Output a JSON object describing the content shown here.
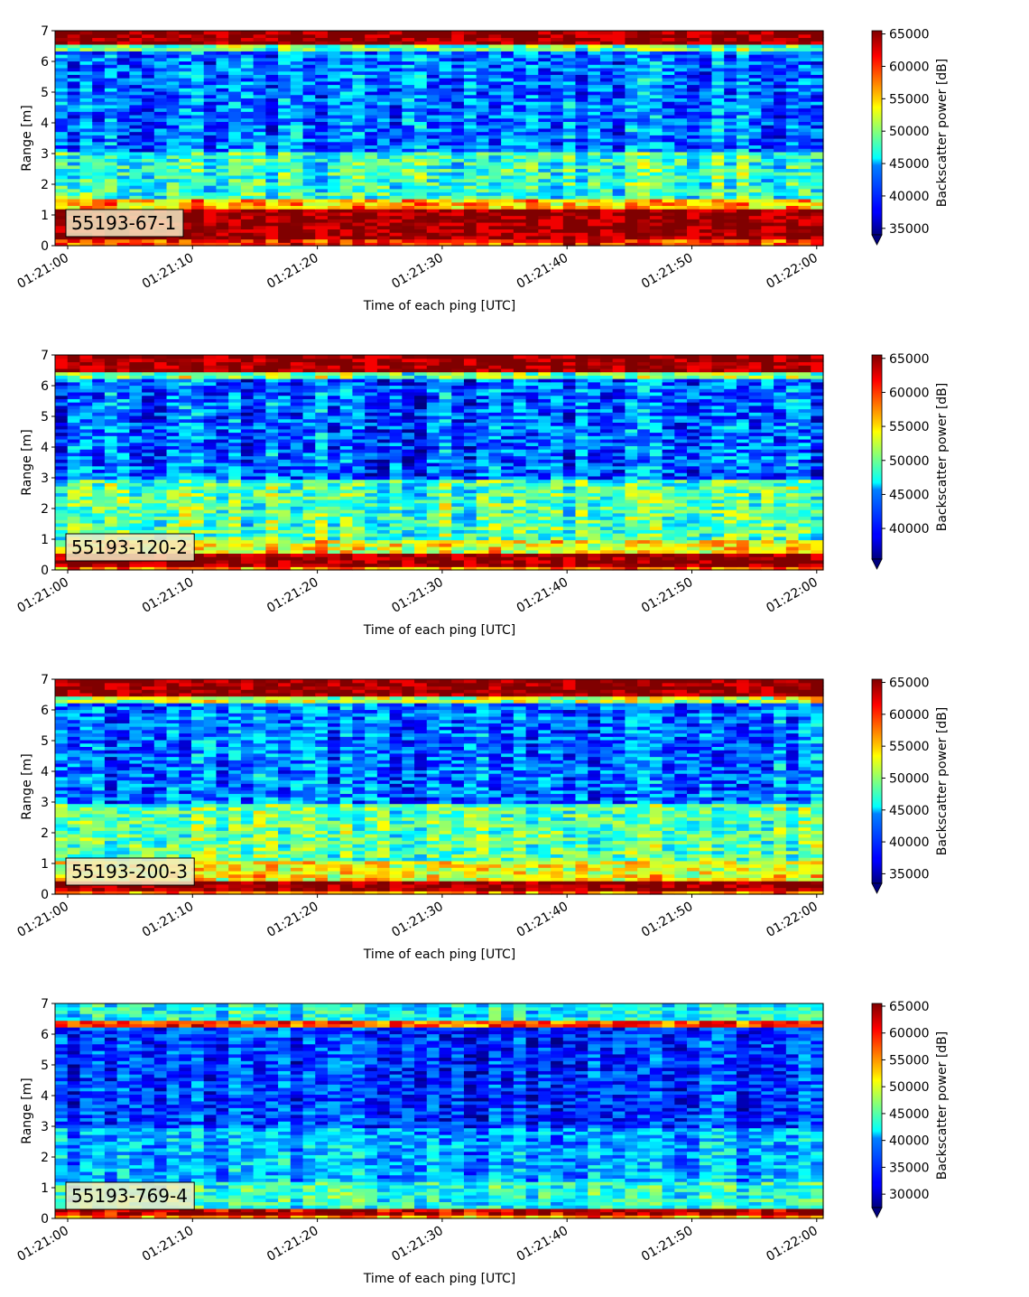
{
  "chart_data": [
    {
      "type": "heatmap",
      "panel_label": "55193-67-1",
      "xlabel": "Time of each ping [UTC]",
      "ylabel": "Range [m]",
      "colorbar_label": "Backscatter power [dB]",
      "colormap": "jet",
      "x_ticks": [
        "01:21:00",
        "01:21:10",
        "01:21:20",
        "01:21:30",
        "01:21:40",
        "01:21:50",
        "01:22:00"
      ],
      "y_ticks": [
        0,
        1,
        2,
        3,
        4,
        5,
        6,
        7
      ],
      "ylim": [
        0,
        7
      ],
      "clim": [
        34000,
        65500
      ],
      "colorbar_ticks": [
        35000,
        40000,
        45000,
        50000,
        55000,
        60000,
        65000
      ],
      "colorbar_extend": "min",
      "features": [
        {
          "from_m": 0.0,
          "to_m": 0.25,
          "level": 60000
        },
        {
          "from_m": 0.25,
          "to_m": 1.2,
          "level": 65000
        },
        {
          "from_m": 1.2,
          "to_m": 1.5,
          "level": 56000
        },
        {
          "from_m": 1.5,
          "to_m": 3.1,
          "level": 47500
        },
        {
          "from_m": 3.1,
          "to_m": 6.3,
          "level": 41500
        },
        {
          "from_m": 6.3,
          "to_m": 6.6,
          "level": 49000
        },
        {
          "from_m": 6.6,
          "to_m": 7.0,
          "level": 65000
        }
      ]
    },
    {
      "type": "heatmap",
      "panel_label": "55193-120-2",
      "xlabel": "Time of each ping [UTC]",
      "ylabel": "Range [m]",
      "colorbar_label": "Backscatter power [dB]",
      "colormap": "jet",
      "x_ticks": [
        "01:21:00",
        "01:21:10",
        "01:21:20",
        "01:21:30",
        "01:21:40",
        "01:21:50",
        "01:22:00"
      ],
      "y_ticks": [
        0,
        1,
        2,
        3,
        4,
        5,
        6,
        7
      ],
      "ylim": [
        0,
        7
      ],
      "clim": [
        35500,
        65500
      ],
      "colorbar_ticks": [
        40000,
        45000,
        50000,
        55000,
        60000,
        65000
      ],
      "colorbar_extend": "min",
      "features": [
        {
          "from_m": 0.0,
          "to_m": 0.15,
          "level": 58000
        },
        {
          "from_m": 0.15,
          "to_m": 0.6,
          "level": 65000
        },
        {
          "from_m": 0.6,
          "to_m": 1.0,
          "level": 54000
        },
        {
          "from_m": 1.0,
          "to_m": 3.0,
          "level": 49000
        },
        {
          "from_m": 3.0,
          "to_m": 6.2,
          "level": 42000
        },
        {
          "from_m": 6.2,
          "to_m": 6.5,
          "level": 50000
        },
        {
          "from_m": 6.5,
          "to_m": 7.0,
          "level": 65000
        }
      ]
    },
    {
      "type": "heatmap",
      "panel_label": "55193-200-3",
      "xlabel": "Time of each ping [UTC]",
      "ylabel": "Range [m]",
      "colorbar_label": "Backscatter power [dB]",
      "colormap": "jet",
      "x_ticks": [
        "01:21:00",
        "01:21:10",
        "01:21:20",
        "01:21:30",
        "01:21:40",
        "01:21:50",
        "01:22:00"
      ],
      "y_ticks": [
        0,
        1,
        2,
        3,
        4,
        5,
        6,
        7
      ],
      "ylim": [
        0,
        7
      ],
      "clim": [
        33500,
        65500
      ],
      "colorbar_ticks": [
        35000,
        40000,
        45000,
        50000,
        55000,
        60000,
        65000
      ],
      "colorbar_extend": "min",
      "features": [
        {
          "from_m": 0.0,
          "to_m": 0.15,
          "level": 57000
        },
        {
          "from_m": 0.15,
          "to_m": 0.45,
          "level": 65000
        },
        {
          "from_m": 0.45,
          "to_m": 1.1,
          "level": 53000
        },
        {
          "from_m": 1.1,
          "to_m": 3.0,
          "level": 48500
        },
        {
          "from_m": 3.0,
          "to_m": 6.2,
          "level": 41000
        },
        {
          "from_m": 6.2,
          "to_m": 6.5,
          "level": 51000
        },
        {
          "from_m": 6.5,
          "to_m": 7.0,
          "level": 65000
        }
      ]
    },
    {
      "type": "heatmap",
      "panel_label": "55193-769-4",
      "xlabel": "Time of each ping [UTC]",
      "ylabel": "Range [m]",
      "colorbar_label": "Backscatter power [dB]",
      "colormap": "jet",
      "x_ticks": [
        "01:21:00",
        "01:21:10",
        "01:21:20",
        "01:21:30",
        "01:21:40",
        "01:21:50",
        "01:22:00"
      ],
      "y_ticks": [
        0,
        1,
        2,
        3,
        4,
        5,
        6,
        7
      ],
      "ylim": [
        0,
        7
      ],
      "clim": [
        27500,
        65500
      ],
      "colorbar_ticks": [
        30000,
        35000,
        40000,
        45000,
        50000,
        55000,
        60000,
        65000
      ],
      "colorbar_extend": "min",
      "features": [
        {
          "from_m": 0.0,
          "to_m": 0.15,
          "level": 55000
        },
        {
          "from_m": 0.15,
          "to_m": 0.3,
          "level": 63000
        },
        {
          "from_m": 0.3,
          "to_m": 1.2,
          "level": 43000
        },
        {
          "from_m": 1.2,
          "to_m": 3.0,
          "level": 38500
        },
        {
          "from_m": 3.0,
          "to_m": 6.2,
          "level": 34000
        },
        {
          "from_m": 6.2,
          "to_m": 6.5,
          "level": 58000
        },
        {
          "from_m": 6.5,
          "to_m": 7.0,
          "level": 42000
        }
      ]
    }
  ]
}
